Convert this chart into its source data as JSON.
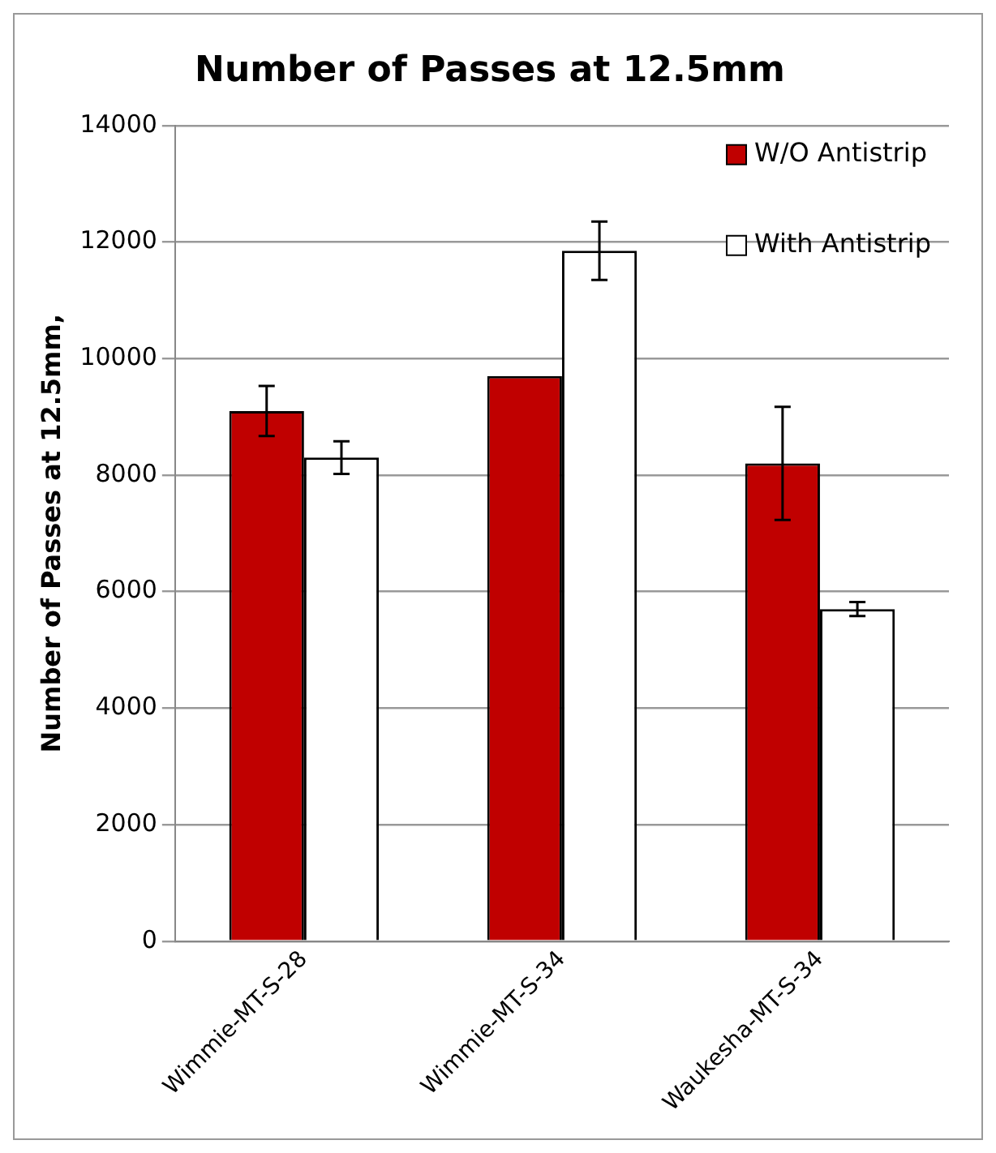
{
  "chart_data": {
    "type": "bar",
    "title": "Number of Passes at 12.5mm",
    "ylabel": "Number of Passes at 12.5mm,",
    "categories": [
      "Wimmie-MT-S-28",
      "Wimmie-MT-S-34",
      "Waukesha-MT-S-34"
    ],
    "series": [
      {
        "name": "W/O Antistrip",
        "color": "#c00000",
        "values": [
          9100,
          9700,
          8200
        ],
        "errors": [
          430,
          null,
          970
        ]
      },
      {
        "name": "With Antistrip",
        "color": "#ffffff",
        "values": [
          8300,
          11850,
          5700
        ],
        "errors": [
          280,
          500,
          120
        ]
      }
    ],
    "ylim": [
      0,
      14000
    ],
    "yticks": [
      0,
      2000,
      4000,
      6000,
      8000,
      10000,
      12000,
      14000
    ],
    "grid": "y",
    "legend": "top right"
  }
}
